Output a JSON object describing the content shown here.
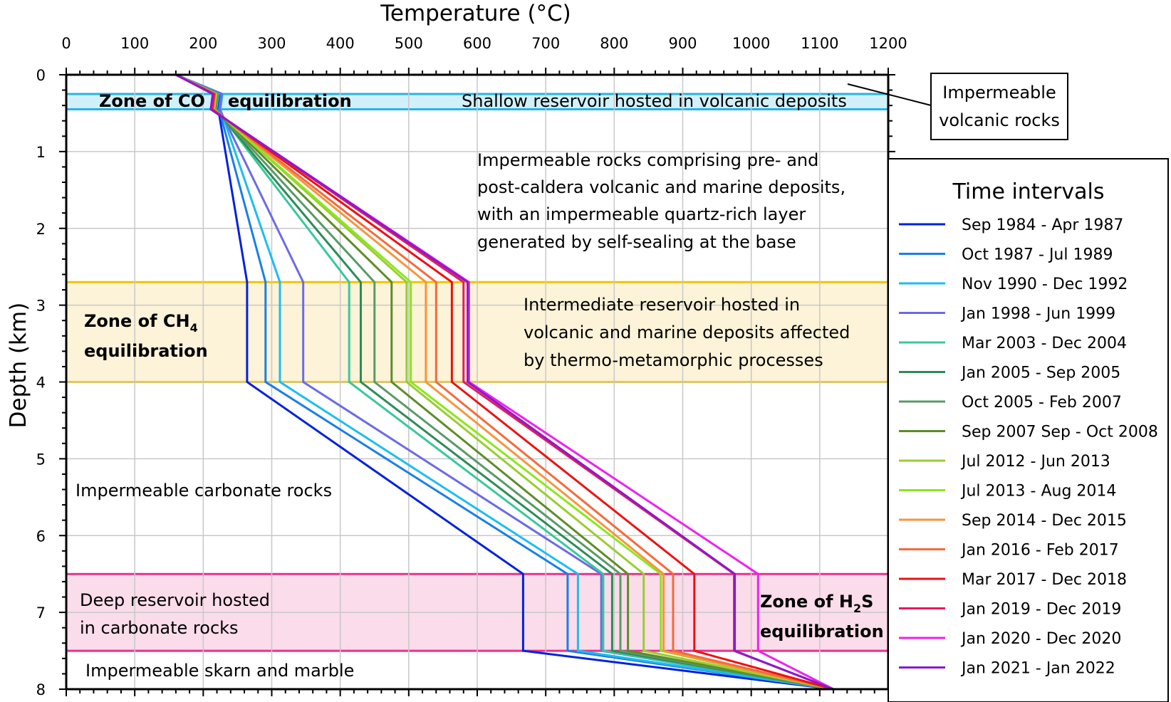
{
  "chart_data": {
    "type": "line",
    "title": "",
    "xlabel": "Temperature (°C)",
    "ylabel": "Depth (km)",
    "xlim": [
      0,
      1200
    ],
    "ylim": [
      8,
      0
    ],
    "x_ticks": [
      "0",
      "100",
      "200",
      "300",
      "400",
      "500",
      "600",
      "700",
      "800",
      "900",
      "1000",
      "1100",
      "1200"
    ],
    "y_ticks": [
      "0",
      "1",
      "2",
      "3",
      "4",
      "5",
      "6",
      "7",
      "8"
    ],
    "grid": true,
    "x_axis_position": "top",
    "legend_position": "right",
    "legend_title": "Time intervals",
    "depths_km": [
      0,
      0.25,
      0.45,
      2.7,
      4.0,
      6.5,
      7.5,
      8.0
    ],
    "series": [
      {
        "name": "Sep 1984 - Apr 1987",
        "color": "#0022dd",
        "temps": [
          160,
          225,
          222,
          264,
          264,
          667,
          667,
          1120
        ]
      },
      {
        "name": "Oct 1987 - Jul 1989",
        "color": "#1a7fe6",
        "temps": [
          160,
          226,
          223,
          291,
          291,
          732,
          732,
          1120
        ]
      },
      {
        "name": "Nov 1990 - Dec 1992",
        "color": "#1cbdf0",
        "temps": [
          160,
          228,
          225,
          312,
          312,
          747,
          747,
          1120
        ]
      },
      {
        "name": "Jan 1998 - Jun 1999",
        "color": "#6b6be6",
        "temps": [
          160,
          227,
          224,
          346,
          346,
          781,
          781,
          1120
        ]
      },
      {
        "name": "Mar 2003 - Dec 2004",
        "color": "#38c89a",
        "temps": [
          160,
          222,
          219,
          413,
          413,
          784,
          784,
          1120
        ]
      },
      {
        "name": "Jan 2005 - Sep 2005",
        "color": "#2e8b57",
        "temps": [
          160,
          221,
          218,
          430,
          430,
          797,
          797,
          1120
        ]
      },
      {
        "name": "Oct 2005 - Feb 2007",
        "color": "#5a9a68",
        "temps": [
          160,
          221,
          218,
          450,
          450,
          809,
          809,
          1120
        ]
      },
      {
        "name": "Sep 2007 Sep - Oct 2008",
        "color": "#5e8c2a",
        "temps": [
          160,
          220,
          217,
          475,
          475,
          820,
          820,
          1120
        ]
      },
      {
        "name": "Jul 2012 - Jun 2013",
        "color": "#9acd32",
        "temps": [
          160,
          219,
          216,
          497,
          497,
          843,
          843,
          1120
        ]
      },
      {
        "name": "Jul 2013 - Aug 2014",
        "color": "#8ce61e",
        "temps": [
          160,
          219,
          216,
          503,
          503,
          868,
          868,
          1120
        ]
      },
      {
        "name": "Sep 2014 - Dec 2015",
        "color": "#f5963c",
        "temps": [
          160,
          218,
          215,
          525,
          525,
          872,
          872,
          1120
        ]
      },
      {
        "name": "Jan 2016 - Feb 2017",
        "color": "#f56a3c",
        "temps": [
          160,
          217,
          214,
          540,
          540,
          886,
          886,
          1120
        ]
      },
      {
        "name": "Mar 2017 - Dec 2018",
        "color": "#ee1111",
        "temps": [
          160,
          216,
          213,
          563,
          563,
          917,
          917,
          1120
        ]
      },
      {
        "name": "Jan 2019 - Dec 2019",
        "color": "#e6195e",
        "temps": [
          160,
          215,
          212,
          580,
          580,
          975,
          975,
          1120
        ]
      },
      {
        "name": "Jan 2020 - Dec 2020",
        "color": "#ee22ee",
        "temps": [
          160,
          214,
          211,
          588,
          588,
          1010,
          1010,
          1120
        ]
      },
      {
        "name": "Jan 2021 - Jan 2022",
        "color": "#8a1bc8",
        "temps": [
          160,
          214,
          211,
          586,
          586,
          976,
          976,
          1120
        ]
      }
    ],
    "zones": [
      {
        "key": "co",
        "from_km": 0.25,
        "to_km": 0.45,
        "fill": "#d2f0fa",
        "line": "#25b3e8"
      },
      {
        "key": "ch4",
        "from_km": 2.7,
        "to_km": 4.0,
        "fill": "#fcf3d8",
        "line": "#f5c400"
      },
      {
        "key": "h2s",
        "from_km": 6.5,
        "to_km": 7.5,
        "fill": "#fbdcea",
        "line": "#e6338c"
      }
    ]
  },
  "annotations": {
    "zone_co_a": "Zone of CO",
    "zone_co_b": "equilibration",
    "shallow": "Shallow reservoir hosted in volcanic deposits",
    "impermeable_volcanic_1": "Impermeable",
    "impermeable_volcanic_2": "volcanic rocks",
    "impermeable_rocks_1": "Impermeable rocks comprising pre- and",
    "impermeable_rocks_2": "post-caldera volcanic and marine deposits,",
    "impermeable_rocks_3": "with an impermeable quartz-rich layer",
    "impermeable_rocks_4": "generated by self-sealing at the base",
    "zone_ch4_a": "Zone of CH",
    "zone_ch4_sub": "4",
    "zone_ch4_b": "equilibration",
    "intermediate_1": "Intermediate reservoir hosted in",
    "intermediate_2": "volcanic and marine deposits affected",
    "intermediate_3": "by thermo-metamorphic processes",
    "carbonate": "Impermeable carbonate rocks",
    "deep_1": "Deep reservoir hosted",
    "deep_2": "in carbonate rocks",
    "zone_h2s_a": "Zone of H",
    "zone_h2s_sub": "2",
    "zone_h2s_s": "S",
    "zone_h2s_b": "equilibration",
    "skarn": "Impermeable skarn and marble"
  }
}
